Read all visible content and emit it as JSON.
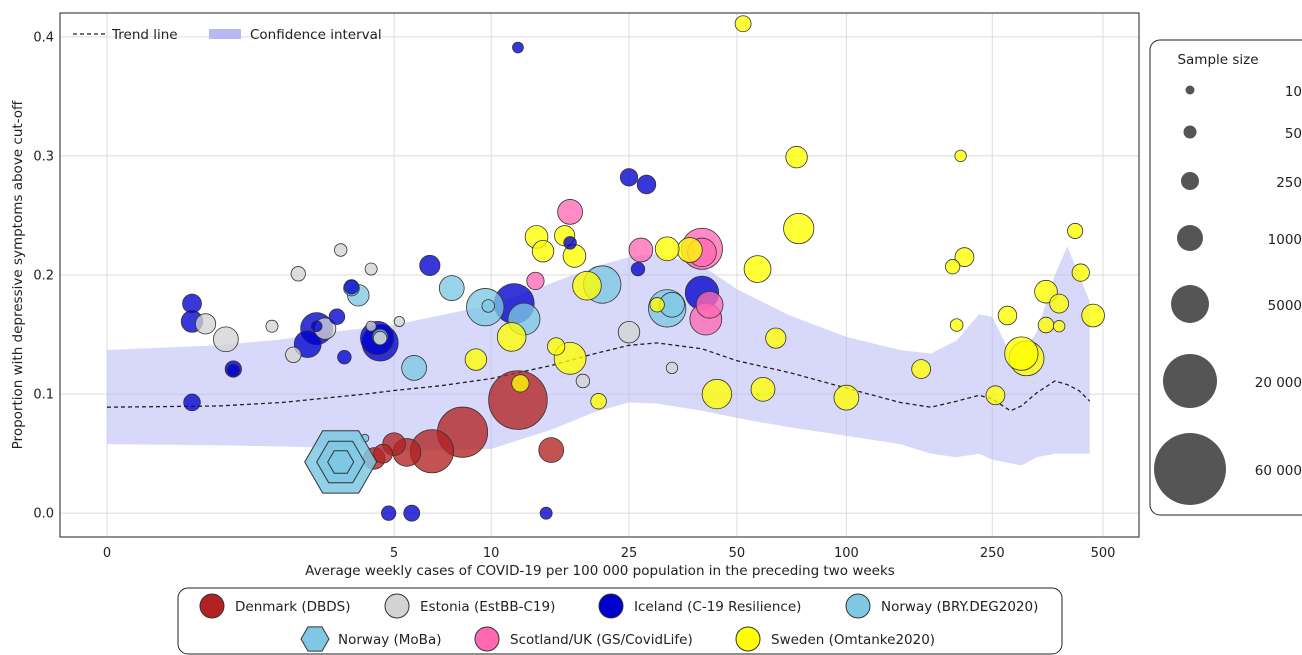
{
  "chart_data": {
    "type": "scatter",
    "xlabel": "Average weekly cases of COVID-19 per 100 000 population in the preceding two weeks",
    "ylabel": "Proportion with depressive symptoms above cut-off",
    "x_scale": "log",
    "xlim": [
      0,
      500
    ],
    "ylim": [
      -0.02,
      0.42
    ],
    "x_ticks": [
      "0",
      "5",
      "10",
      "25",
      "50",
      "100",
      "250",
      "500"
    ],
    "y_ticks": [
      "0.0",
      "0.1",
      "0.2",
      "0.3",
      "0.4"
    ],
    "grid": true,
    "plot_legend": {
      "position": "top-left",
      "trend_label": "Trend line",
      "ci_label": "Confidence interval"
    },
    "size_legend": {
      "title": "Sample size",
      "entries": [
        "10",
        "50",
        "250",
        "1000",
        "5000",
        "20 000",
        "60 000"
      ],
      "values": [
        10,
        50,
        250,
        1000,
        5000,
        20000,
        60000
      ]
    },
    "cohort_legend": [
      {
        "label": "Denmark (DBDS)",
        "color": "#b22222",
        "marker": "circle"
      },
      {
        "label": "Estonia (EstBB-C19)",
        "color": "#d3d3d3",
        "marker": "circle"
      },
      {
        "label": "Iceland (C-19 Resilience)",
        "color": "#0000cd",
        "marker": "circle"
      },
      {
        "label": "Norway (BRY.DEG2020)",
        "color": "#7ec8e3",
        "marker": "circle"
      },
      {
        "label": "Norway (MoBa)",
        "color": "#7ec8e3",
        "marker": "hexagon"
      },
      {
        "label": "Scotland/UK (GS/CovidLife)",
        "color": "#ff69b4",
        "marker": "circle"
      },
      {
        "label": "Sweden (Omtanke2020)",
        "color": "#ffff00",
        "marker": "circle"
      }
    ],
    "trend": {
      "x": [
        0,
        1,
        2,
        3,
        4,
        5,
        7,
        10,
        15,
        20,
        25,
        30,
        40,
        50,
        70,
        100,
        140,
        170,
        200,
        230,
        250,
        280,
        300,
        330,
        370,
        400,
        430,
        460
      ],
      "y": [
        0.089,
        0.09,
        0.093,
        0.097,
        0.1,
        0.103,
        0.107,
        0.113,
        0.124,
        0.134,
        0.141,
        0.143,
        0.138,
        0.128,
        0.118,
        0.105,
        0.093,
        0.089,
        0.094,
        0.099,
        0.096,
        0.086,
        0.09,
        0.101,
        0.111,
        0.108,
        0.103,
        0.094
      ]
    },
    "confidence_band": {
      "x": [
        0,
        1,
        2,
        3,
        5,
        10,
        15,
        20,
        25,
        30,
        40,
        50,
        70,
        100,
        140,
        170,
        200,
        230,
        250,
        280,
        300,
        330,
        370,
        400,
        430,
        460
      ],
      "upper": [
        0.137,
        0.141,
        0.146,
        0.152,
        0.158,
        0.175,
        0.193,
        0.207,
        0.215,
        0.218,
        0.208,
        0.188,
        0.166,
        0.148,
        0.137,
        0.134,
        0.145,
        0.167,
        0.165,
        0.134,
        0.132,
        0.152,
        0.2,
        0.224,
        0.2,
        0.178
      ],
      "lower": [
        0.058,
        0.057,
        0.056,
        0.055,
        0.052,
        0.054,
        0.07,
        0.085,
        0.093,
        0.092,
        0.086,
        0.08,
        0.072,
        0.065,
        0.058,
        0.05,
        0.047,
        0.05,
        0.045,
        0.042,
        0.04,
        0.047,
        0.05,
        0.05,
        0.05,
        0.05
      ]
    },
    "points": [
      {
        "c": 0,
        "x": 4.3,
        "y": 0.046,
        "n": 3500
      },
      {
        "c": 0,
        "x": 4.6,
        "y": 0.05,
        "n": 2500
      },
      {
        "c": 0,
        "x": 5.0,
        "y": 0.058,
        "n": 4000
      },
      {
        "c": 0,
        "x": 5.5,
        "y": 0.051,
        "n": 6500
      },
      {
        "c": 0,
        "x": 6.6,
        "y": 0.052,
        "n": 18000
      },
      {
        "c": 0,
        "x": 8.2,
        "y": 0.068,
        "n": 25000
      },
      {
        "c": 0,
        "x": 12.0,
        "y": 0.095,
        "n": 35000
      },
      {
        "c": 0,
        "x": 15.0,
        "y": 0.053,
        "n": 5000
      },
      {
        "c": 1,
        "x": 0.85,
        "y": 0.159,
        "n": 3000
      },
      {
        "c": 1,
        "x": 1.1,
        "y": 0.146,
        "n": 5000
      },
      {
        "c": 1,
        "x": 1.8,
        "y": 0.157,
        "n": 700
      },
      {
        "c": 1,
        "x": 2.3,
        "y": 0.201,
        "n": 1200
      },
      {
        "c": 1,
        "x": 2.2,
        "y": 0.133,
        "n": 1500
      },
      {
        "c": 1,
        "x": 2.9,
        "y": 0.155,
        "n": 3500
      },
      {
        "c": 1,
        "x": 3.3,
        "y": 0.221,
        "n": 800
      },
      {
        "c": 1,
        "x": 4.2,
        "y": 0.205,
        "n": 700
      },
      {
        "c": 1,
        "x": 4.2,
        "y": 0.157,
        "n": 400
      },
      {
        "c": 1,
        "x": 4.5,
        "y": 0.147,
        "n": 1000
      },
      {
        "c": 1,
        "x": 5.2,
        "y": 0.161,
        "n": 400
      },
      {
        "c": 1,
        "x": 18.5,
        "y": 0.111,
        "n": 1000
      },
      {
        "c": 1,
        "x": 25.0,
        "y": 0.152,
        "n": 3500
      },
      {
        "c": 1,
        "x": 33.0,
        "y": 0.122,
        "n": 600
      },
      {
        "c": 2,
        "x": 0.7,
        "y": 0.093,
        "n": 1800
      },
      {
        "c": 2,
        "x": 0.7,
        "y": 0.176,
        "n": 2500
      },
      {
        "c": 2,
        "x": 0.7,
        "y": 0.161,
        "n": 3500
      },
      {
        "c": 2,
        "x": 1.2,
        "y": 0.121,
        "n": 1700
      },
      {
        "c": 2,
        "x": 1.2,
        "y": 0.12,
        "n": 800
      },
      {
        "c": 2,
        "x": 2.5,
        "y": 0.142,
        "n": 6000
      },
      {
        "c": 2,
        "x": 2.7,
        "y": 0.155,
        "n": 9000
      },
      {
        "c": 2,
        "x": 2.7,
        "y": 0.157,
        "n": 500
      },
      {
        "c": 2,
        "x": 3.2,
        "y": 0.165,
        "n": 1500
      },
      {
        "c": 2,
        "x": 3.4,
        "y": 0.131,
        "n": 1000
      },
      {
        "c": 2,
        "x": 3.6,
        "y": 0.19,
        "n": 1200
      },
      {
        "c": 2,
        "x": 4.4,
        "y": 0.147,
        "n": 10000
      },
      {
        "c": 2,
        "x": 4.5,
        "y": 0.143,
        "n": 12000
      },
      {
        "c": 2,
        "x": 4.8,
        "y": 0.0,
        "n": 1200
      },
      {
        "c": 2,
        "x": 5.7,
        "y": 0.0,
        "n": 1600
      },
      {
        "c": 2,
        "x": 6.5,
        "y": 0.208,
        "n": 3000
      },
      {
        "c": 2,
        "x": 11.7,
        "y": 0.176,
        "n": 15000
      },
      {
        "c": 2,
        "x": 12.0,
        "y": 0.391,
        "n": 500
      },
      {
        "c": 2,
        "x": 14.5,
        "y": 0.0,
        "n": 700
      },
      {
        "c": 2,
        "x": 17.0,
        "y": 0.227,
        "n": 800
      },
      {
        "c": 2,
        "x": 25.0,
        "y": 0.282,
        "n": 2000
      },
      {
        "c": 2,
        "x": 26.5,
        "y": 0.205,
        "n": 1000
      },
      {
        "c": 2,
        "x": 28.0,
        "y": 0.276,
        "n": 2400
      },
      {
        "c": 2,
        "x": 40.0,
        "y": 0.185,
        "n": 10000
      },
      {
        "c": 3,
        "x": 3.8,
        "y": 0.183,
        "n": 3500
      },
      {
        "c": 3,
        "x": 3.6,
        "y": 0.189,
        "n": 1500
      },
      {
        "c": 3,
        "x": 4.5,
        "y": 0.148,
        "n": 1500
      },
      {
        "c": 3,
        "x": 5.8,
        "y": 0.122,
        "n": 5000
      },
      {
        "c": 3,
        "x": 7.6,
        "y": 0.189,
        "n": 5000
      },
      {
        "c": 3,
        "x": 9.6,
        "y": 0.173,
        "n": 13000
      },
      {
        "c": 3,
        "x": 9.8,
        "y": 0.174,
        "n": 800
      },
      {
        "c": 3,
        "x": 12.5,
        "y": 0.163,
        "n": 9000
      },
      {
        "c": 3,
        "x": 21.0,
        "y": 0.192,
        "n": 13000
      },
      {
        "c": 3,
        "x": 32.0,
        "y": 0.172,
        "n": 13000
      },
      {
        "c": 3,
        "x": 33.0,
        "y": 0.175,
        "n": 5000
      },
      {
        "c": 4,
        "x": 4.0,
        "y": 0.063,
        "n": 150
      },
      {
        "c": 5,
        "x": 13.5,
        "y": 0.195,
        "n": 2000
      },
      {
        "c": 5,
        "x": 17.0,
        "y": 0.253,
        "n": 5000
      },
      {
        "c": 5,
        "x": 27.0,
        "y": 0.221,
        "n": 4500
      },
      {
        "c": 5,
        "x": 40.0,
        "y": 0.222,
        "n": 16000
      },
      {
        "c": 5,
        "x": 40.0,
        "y": 0.219,
        "n": 7000
      },
      {
        "c": 5,
        "x": 41.0,
        "y": 0.163,
        "n": 9000
      },
      {
        "c": 5,
        "x": 42.0,
        "y": 0.175,
        "n": 6000
      },
      {
        "c": 6,
        "x": 9.0,
        "y": 0.129,
        "n": 3500
      },
      {
        "c": 6,
        "x": 11.5,
        "y": 0.148,
        "n": 7000
      },
      {
        "c": 6,
        "x": 12.2,
        "y": 0.109,
        "n": 2000
      },
      {
        "c": 6,
        "x": 13.6,
        "y": 0.232,
        "n": 4000
      },
      {
        "c": 6,
        "x": 14.2,
        "y": 0.22,
        "n": 3500
      },
      {
        "c": 6,
        "x": 15.5,
        "y": 0.14,
        "n": 2000
      },
      {
        "c": 6,
        "x": 16.4,
        "y": 0.233,
        "n": 3000
      },
      {
        "c": 6,
        "x": 17.0,
        "y": 0.13,
        "n": 9000
      },
      {
        "c": 6,
        "x": 17.5,
        "y": 0.216,
        "n": 4000
      },
      {
        "c": 6,
        "x": 19.0,
        "y": 0.191,
        "n": 7000
      },
      {
        "c": 6,
        "x": 20.5,
        "y": 0.094,
        "n": 1500
      },
      {
        "c": 6,
        "x": 30.0,
        "y": 0.175,
        "n": 1200
      },
      {
        "c": 6,
        "x": 32.0,
        "y": 0.222,
        "n": 4500
      },
      {
        "c": 6,
        "x": 37.0,
        "y": 0.221,
        "n": 5000
      },
      {
        "c": 6,
        "x": 44.0,
        "y": 0.1,
        "n": 7500
      },
      {
        "c": 6,
        "x": 52.0,
        "y": 0.411,
        "n": 1600
      },
      {
        "c": 6,
        "x": 57.0,
        "y": 0.205,
        "n": 6000
      },
      {
        "c": 6,
        "x": 59.0,
        "y": 0.104,
        "n": 4500
      },
      {
        "c": 6,
        "x": 64.0,
        "y": 0.147,
        "n": 3000
      },
      {
        "c": 6,
        "x": 73.0,
        "y": 0.299,
        "n": 3500
      },
      {
        "c": 6,
        "x": 74.0,
        "y": 0.239,
        "n": 8000
      },
      {
        "c": 6,
        "x": 100.0,
        "y": 0.097,
        "n": 5000
      },
      {
        "c": 6,
        "x": 160.0,
        "y": 0.121,
        "n": 2500
      },
      {
        "c": 6,
        "x": 195.0,
        "y": 0.207,
        "n": 1200
      },
      {
        "c": 6,
        "x": 200.0,
        "y": 0.158,
        "n": 800
      },
      {
        "c": 6,
        "x": 205.0,
        "y": 0.3,
        "n": 600
      },
      {
        "c": 6,
        "x": 210.0,
        "y": 0.215,
        "n": 2500
      },
      {
        "c": 6,
        "x": 255.0,
        "y": 0.099,
        "n": 2500
      },
      {
        "c": 6,
        "x": 275.0,
        "y": 0.166,
        "n": 2400
      },
      {
        "c": 6,
        "x": 300.0,
        "y": 0.134,
        "n": 10000
      },
      {
        "c": 6,
        "x": 310.0,
        "y": 0.13,
        "n": 11000
      },
      {
        "c": 6,
        "x": 350.0,
        "y": 0.186,
        "n": 4000
      },
      {
        "c": 6,
        "x": 350.0,
        "y": 0.158,
        "n": 1500
      },
      {
        "c": 6,
        "x": 380.0,
        "y": 0.176,
        "n": 2500
      },
      {
        "c": 6,
        "x": 380.0,
        "y": 0.157,
        "n": 600
      },
      {
        "c": 6,
        "x": 420.0,
        "y": 0.237,
        "n": 1400
      },
      {
        "c": 6,
        "x": 435.0,
        "y": 0.202,
        "n": 2000
      },
      {
        "c": 6,
        "x": 470.0,
        "y": 0.166,
        "n": 4000
      }
    ],
    "moba_marker": {
      "x": 3.3,
      "y": 0.043,
      "n": 70000
    }
  }
}
